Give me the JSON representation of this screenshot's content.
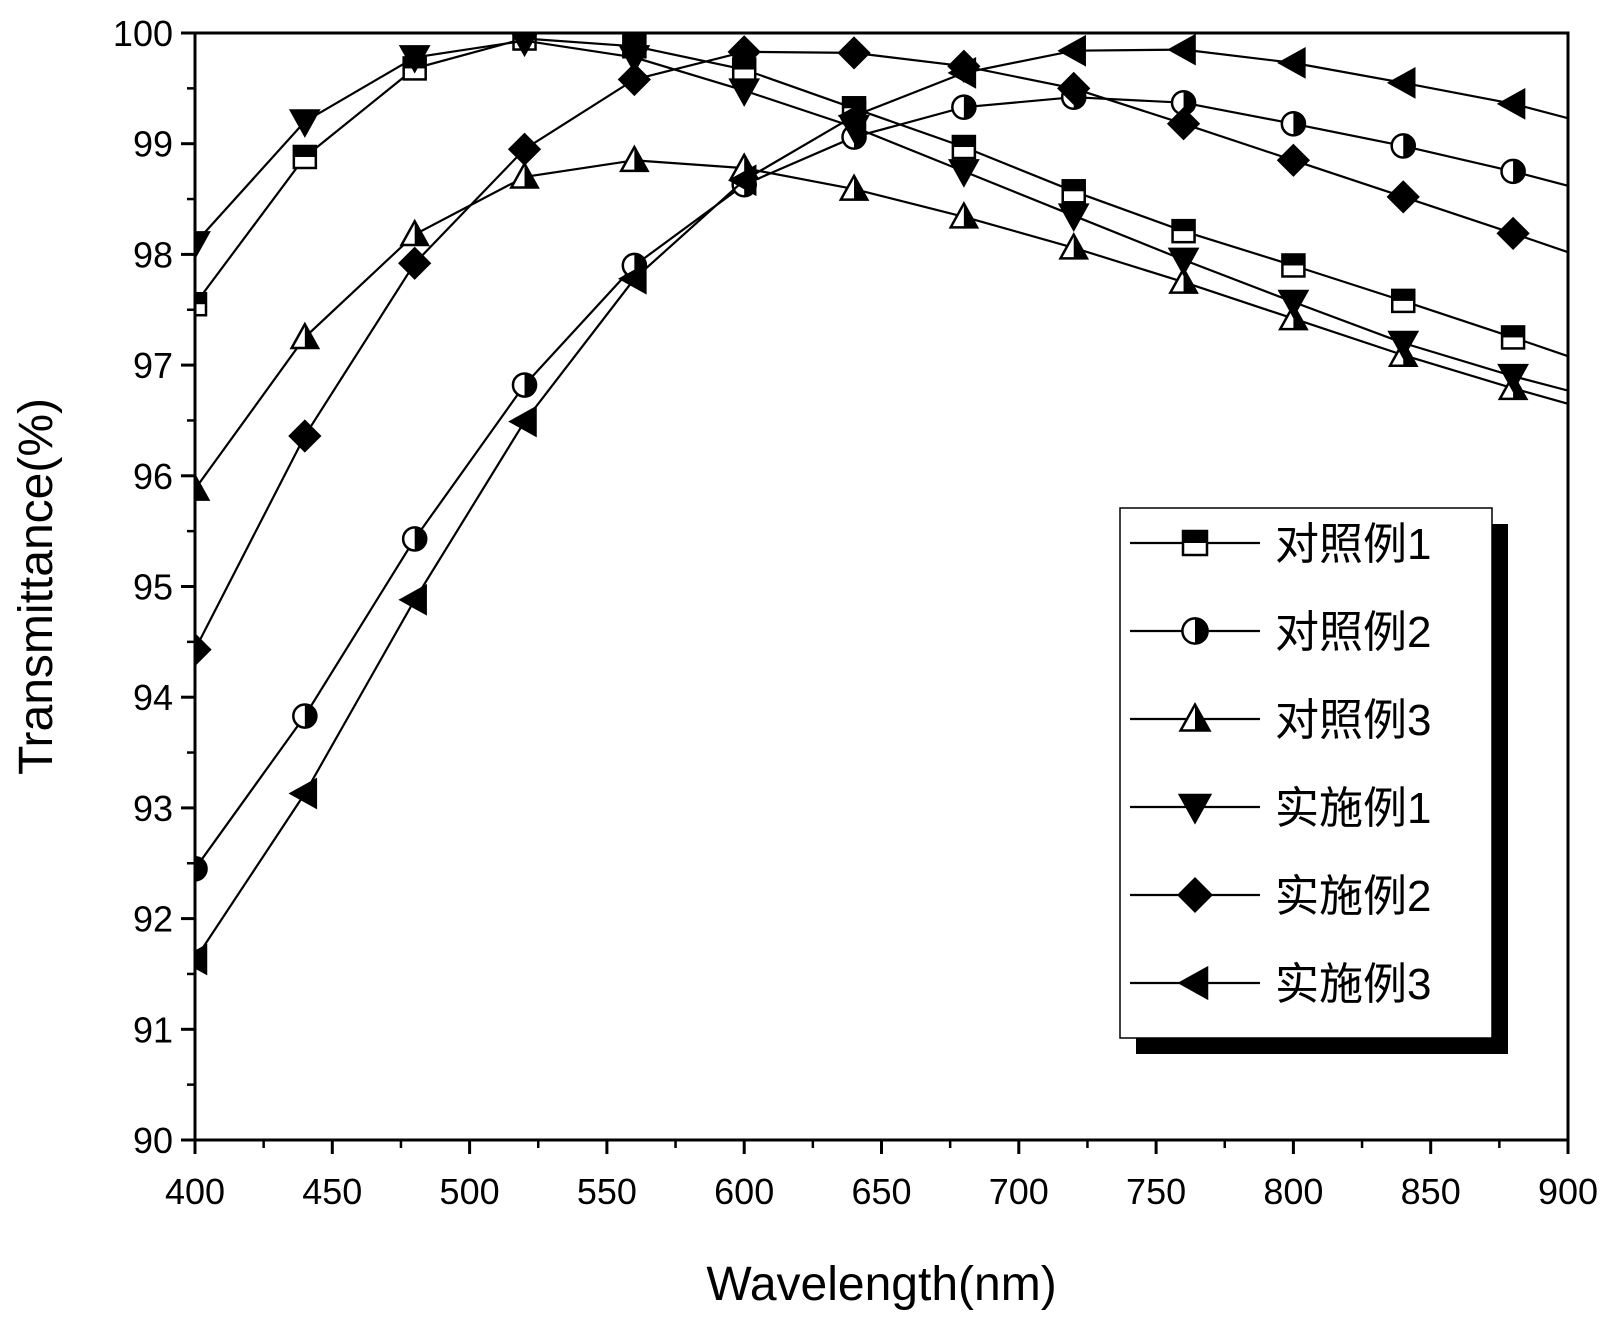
{
  "chart_data": {
    "type": "line",
    "title": "",
    "xlabel": "Wavelength(nm)",
    "ylabel": "Transmittance(%)",
    "xlim": [
      400,
      900
    ],
    "ylim": [
      90,
      100
    ],
    "xticks": [
      400,
      450,
      500,
      550,
      600,
      650,
      700,
      750,
      800,
      850,
      900
    ],
    "yticks": [
      90,
      91,
      92,
      93,
      94,
      95,
      96,
      97,
      98,
      99,
      100
    ],
    "grid": false,
    "legend_position": "right",
    "series": [
      {
        "name": "对照例1",
        "marker": "square-half",
        "x": [
          400,
          440,
          480,
          520,
          560,
          600,
          640,
          680,
          720,
          760,
          800,
          840,
          880,
          900
        ],
        "y": [
          97.55,
          98.88,
          99.68,
          99.95,
          99.88,
          99.67,
          99.32,
          98.97,
          98.57,
          98.21,
          97.9,
          97.58,
          97.25,
          97.08
        ]
      },
      {
        "name": "对照例2",
        "marker": "circle-half",
        "x": [
          400,
          440,
          480,
          520,
          560,
          600,
          640,
          680,
          720,
          760,
          800,
          840,
          880,
          900
        ],
        "y": [
          92.45,
          93.83,
          95.43,
          96.82,
          97.9,
          98.63,
          99.06,
          99.33,
          99.42,
          99.37,
          99.18,
          98.98,
          98.75,
          98.62
        ]
      },
      {
        "name": "对照例3",
        "marker": "triangle-up-half",
        "x": [
          400,
          440,
          480,
          520,
          560,
          600,
          640,
          680,
          720,
          760,
          800,
          840,
          880,
          900
        ],
        "y": [
          95.88,
          97.25,
          98.18,
          98.7,
          98.85,
          98.78,
          98.59,
          98.34,
          98.06,
          97.75,
          97.42,
          97.09,
          96.79,
          96.65
        ]
      },
      {
        "name": "实施例1",
        "marker": "triangle-down",
        "x": [
          400,
          440,
          480,
          520,
          560,
          600,
          640,
          680,
          720,
          760,
          800,
          840,
          880,
          900
        ],
        "y": [
          98.1,
          99.2,
          99.78,
          99.93,
          99.78,
          99.48,
          99.15,
          98.75,
          98.35,
          97.95,
          97.57,
          97.2,
          96.9,
          96.77
        ]
      },
      {
        "name": "实施例2",
        "marker": "diamond",
        "x": [
          400,
          440,
          480,
          520,
          560,
          600,
          640,
          680,
          720,
          760,
          800,
          840,
          880,
          900
        ],
        "y": [
          94.43,
          96.36,
          97.92,
          98.95,
          99.58,
          99.83,
          99.82,
          99.7,
          99.5,
          99.18,
          98.85,
          98.52,
          98.19,
          98.02
        ]
      },
      {
        "name": "实施例3",
        "marker": "triangle-left",
        "x": [
          400,
          440,
          480,
          520,
          560,
          600,
          640,
          680,
          720,
          760,
          800,
          840,
          880,
          900
        ],
        "y": [
          91.63,
          93.13,
          94.88,
          96.49,
          97.78,
          98.67,
          99.25,
          99.64,
          99.84,
          99.85,
          99.73,
          99.55,
          99.36,
          99.23
        ]
      }
    ]
  }
}
